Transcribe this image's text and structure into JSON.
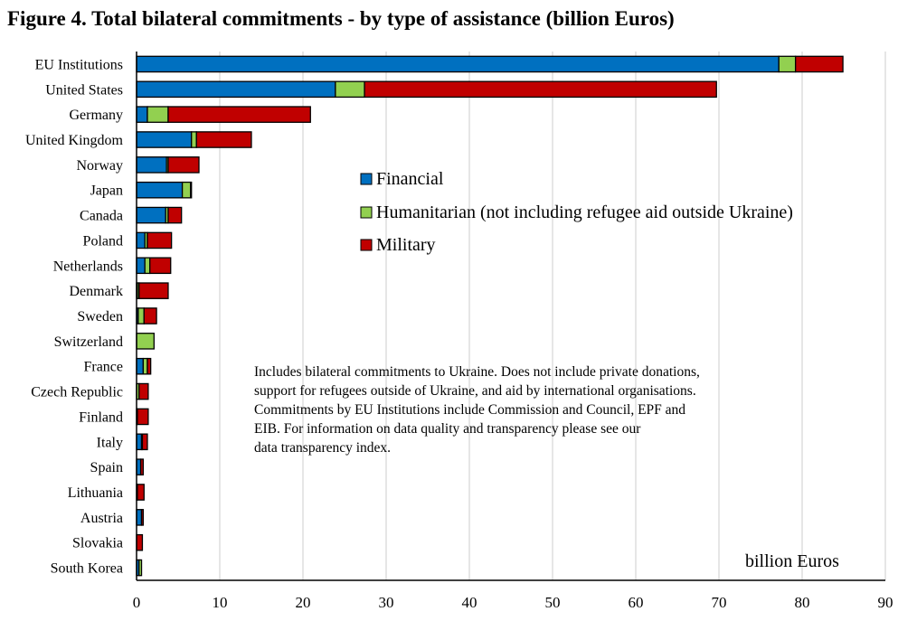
{
  "chart_data": {
    "type": "bar",
    "orientation": "horizontal",
    "stacked": true,
    "title": "Figure 4. Total bilateral commitments - by type of assistance (billion Euros)",
    "xlabel": "billion Euros",
    "ylabel": "",
    "xlim": [
      0,
      90
    ],
    "xticks": [
      "0",
      "10",
      "20",
      "30",
      "40",
      "50",
      "60",
      "70",
      "80",
      "90"
    ],
    "grid": true,
    "legend_position": "center",
    "categories": [
      "EU Institutions",
      "United States",
      "Germany",
      "United Kingdom",
      "Norway",
      "Japan",
      "Canada",
      "Poland",
      "Netherlands",
      "Denmark",
      "Sweden",
      "Switzerland",
      "France",
      "Czech Republic",
      "Finland",
      "Italy",
      "Spain",
      "Lithuania",
      "Austria",
      "Slovakia",
      "South Korea"
    ],
    "series": [
      {
        "name": "Financial",
        "color": "#0070C0",
        "values": [
          77.2,
          23.9,
          1.3,
          6.6,
          3.6,
          5.5,
          3.5,
          1.0,
          1.0,
          0.1,
          0.2,
          0.0,
          0.8,
          0.0,
          0.1,
          0.6,
          0.5,
          0.1,
          0.6,
          0.0,
          0.3
        ]
      },
      {
        "name": "Humanitarian (not including refugee aid outside Ukraine)",
        "color": "#92D050",
        "values": [
          2.0,
          3.5,
          2.5,
          0.6,
          0.2,
          1.0,
          0.3,
          0.3,
          0.6,
          0.2,
          0.7,
          2.1,
          0.5,
          0.3,
          0.0,
          0.1,
          0.0,
          0.0,
          0.0,
          0.0,
          0.3
        ]
      },
      {
        "name": "Military",
        "color": "#C00000",
        "values": [
          5.7,
          42.3,
          17.1,
          6.6,
          3.7,
          0.1,
          1.6,
          2.9,
          2.5,
          3.5,
          1.5,
          0.0,
          0.4,
          1.1,
          1.3,
          0.6,
          0.3,
          0.8,
          0.2,
          0.7,
          0.0
        ]
      }
    ],
    "annotations": [
      "Includes bilateral commitments to Ukraine. Does not include private donations, support for refugees outside of Ukraine, and aid by international organisations. Commitments by EU Institutions include Commission and Council, EPF and EIB. For information on data quality and transparency please see our data transparency index."
    ]
  },
  "note_lines": [
    "Includes bilateral commitments to Ukraine. Does not include private donations,",
    "support for refugees outside of Ukraine, and aid by international organisations.",
    "Commitments by EU Institutions include Commission and Council, EPF and",
    "EIB. For information on data quality and transparency please see our",
    "data transparency index."
  ]
}
